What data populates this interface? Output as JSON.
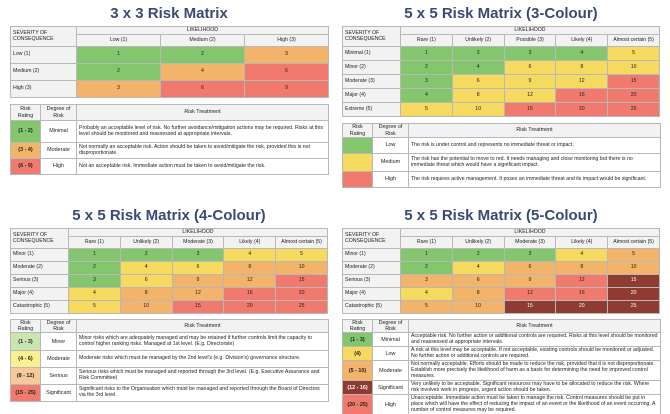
{
  "matrix3": {
    "title": "3 x 3 Risk Matrix",
    "likelihood_label": "LIKELIHOOD",
    "severity_label": "SEVERITY OF CONSEQUENCE",
    "cols": [
      "Low (1)",
      "Medium (2)",
      "High (3)"
    ],
    "rows": [
      {
        "label": "Low (1)",
        "values": [
          "1",
          "2",
          "3"
        ]
      },
      {
        "label": "Medium (2)",
        "values": [
          "2",
          "4",
          "6"
        ]
      },
      {
        "label": "High (3)",
        "values": [
          "3",
          "6",
          "9"
        ]
      }
    ],
    "legend_headers": [
      "Risk Rating",
      "Degree of Risk",
      "Risk Treatment"
    ],
    "legend": [
      {
        "rating": "(1 - 2)",
        "degree": "Minimal",
        "treatment": "Probably an acceptable level of risk. No further avoidance/mitigation actions may be required. Risks at this level should be monitored and reassessed at appropriate intervals."
      },
      {
        "rating": "(3 - 4)",
        "degree": "Moderate",
        "treatment": "Not normally an acceptable risk. Action should be taken to avoid/mitigate the risk, provided this is not disproportionate."
      },
      {
        "rating": "(6 - 9)",
        "degree": "High",
        "treatment": "Not an acceptable risk. Immediate action must be taken to avoid/mitigate the risk."
      }
    ]
  },
  "matrix5_3c": {
    "title": "5 x 5 Risk Matrix (3-Colour)",
    "likelihood_label": "LIKELIHOOD",
    "severity_label": "SEVERITY OF CONSEQUENCE",
    "cols": [
      "Rare (1)",
      "Unlikely (2)",
      "Possible (3)",
      "Likely (4)",
      "Almost certain (5)"
    ],
    "rows": [
      {
        "label": "Minimal (1)",
        "values": [
          "1",
          "2",
          "3",
          "4",
          "5"
        ]
      },
      {
        "label": "Minor (2)",
        "values": [
          "2",
          "4",
          "6",
          "8",
          "10"
        ]
      },
      {
        "label": "Moderate (3)",
        "values": [
          "3",
          "6",
          "9",
          "12",
          "15"
        ]
      },
      {
        "label": "Major (4)",
        "values": [
          "4",
          "8",
          "12",
          "16",
          "20"
        ]
      },
      {
        "label": "Extreme (5)",
        "values": [
          "5",
          "10",
          "15",
          "20",
          "25"
        ]
      }
    ],
    "legend_headers": [
      "Risk Rating",
      "Degree of Risk",
      "Risk Treatment"
    ],
    "legend": [
      {
        "degree": "Low",
        "treatment": "The risk is under control and represents no immediate threat or impact."
      },
      {
        "degree": "Medium",
        "treatment": "The risk has the potential to move to red. It needs managing and close monitoring but there is no immediate threat which would have a significant impact."
      },
      {
        "degree": "High",
        "treatment": "The risk requires active management. It poses an immediate threat and its impact would be significant."
      }
    ]
  },
  "matrix5_4c": {
    "title": "5 x 5 Risk Matrix (4-Colour)",
    "likelihood_label": "LIKELIHOOD",
    "severity_label": "SEVERITY OF CONSEQUENCE",
    "cols": [
      "Rare (1)",
      "Unlikely (2)",
      "Moderate (3)",
      "Likely (4)",
      "Almost certain (5)"
    ],
    "rows": [
      {
        "label": "Minor (1)",
        "values": [
          "1",
          "2",
          "3",
          "4",
          "5"
        ]
      },
      {
        "label": "Moderate (2)",
        "values": [
          "2",
          "4",
          "6",
          "8",
          "10"
        ]
      },
      {
        "label": "Serious (3)",
        "values": [
          "3",
          "6",
          "9",
          "12",
          "15"
        ]
      },
      {
        "label": "Major (4)",
        "values": [
          "4",
          "8",
          "12",
          "16",
          "20"
        ]
      },
      {
        "label": "Catastrophic (5)",
        "values": [
          "5",
          "10",
          "15",
          "20",
          "25"
        ]
      }
    ],
    "legend_headers": [
      "Risk Rating",
      "Degree of Risk",
      "Risk Treatment"
    ],
    "legend": [
      {
        "rating": "(1 - 3)",
        "degree": "Minor",
        "treatment": "Minor risks which are adequately managed and may be retained if further controls limit the capacity to control higher ranking risks. Managed at 1st level. (E.g. Directorate)"
      },
      {
        "rating": "(4 - 6)",
        "degree": "Moderate",
        "treatment": "Moderate risks which must be managed by the 2nd level's (e.g. Division's) governance structure."
      },
      {
        "rating": "(8 - 12)",
        "degree": "Serious",
        "treatment": "Serious risks which must be managed and reported through the 3rd level. (E.g. Executive Assurance and Risk Committee)"
      },
      {
        "rating": "(15 - 25)",
        "degree": "Significant",
        "treatment": "Significant risks to the Organisation which must be managed and reported through the Board of Directors via the 3rd level."
      }
    ]
  },
  "matrix5_5c": {
    "title": "5 x 5 Risk Matrix (5-Colour)",
    "likelihood_label": "LIKELIHOOD",
    "severity_label": "SEVERITY OF CONSEQUENCE",
    "cols": [
      "Rare (1)",
      "Unlikely (2)",
      "Moderate (3)",
      "Likely (4)",
      "Almost certain (5)"
    ],
    "rows": [
      {
        "label": "Minor (1)",
        "values": [
          "1",
          "2",
          "3",
          "4",
          "5"
        ]
      },
      {
        "label": "Moderate (2)",
        "values": [
          "2",
          "4",
          "6",
          "8",
          "10"
        ]
      },
      {
        "label": "Serious (3)",
        "values": [
          "3",
          "6",
          "9",
          "12",
          "15"
        ]
      },
      {
        "label": "Major (4)",
        "values": [
          "4",
          "8",
          "12",
          "16",
          "20"
        ]
      },
      {
        "label": "Catastrophic (5)",
        "values": [
          "5",
          "10",
          "15",
          "20",
          "25"
        ]
      }
    ],
    "legend_headers": [
      "Risk Rating",
      "Degree of Risk",
      "Risk Treatment"
    ],
    "legend": [
      {
        "rating": "(1 - 3)",
        "degree": "Minimal",
        "treatment": "Acceptable risk. No further action or additional controls are required. Risks at this level should be monitored and reassessed at appropriate intervals."
      },
      {
        "rating": "(4)",
        "degree": "Low",
        "treatment": "A risk at this level may be acceptable. If not acceptable, existing controls should be monitored or adjusted. No further action or additional controls are required."
      },
      {
        "rating": "(5 - 10)",
        "degree": "Moderate",
        "treatment": "Not normally acceptable. Efforts should be made to reduce the risk, provided that it is not disproportionate. Establish more precisely the likelihood of harm as a basis for determining the need for improved control measures."
      },
      {
        "rating": "(12 - 16)",
        "degree": "Significant",
        "treatment": "Very unlikely to be acceptable. Significant resources may have to be allocated to reduce the risk. Where risk involves work in progress, urgent action should be taken."
      },
      {
        "rating": "(20 - 25)",
        "degree": "High",
        "treatment": "Unacceptable. Immediate action must be taken to manage the risk. Control measures should be put in place which will have the effect of reducing the impact of an event or the likelihood of an event occurring. A number of control measures may be required."
      }
    ]
  },
  "colors": {
    "green": "#84c66d",
    "yellow": "#f6d95f",
    "orange": "#f2b46a",
    "red": "#f07a6d",
    "dark_red": "#8e3b32",
    "title_blue": "#3a4a74"
  }
}
